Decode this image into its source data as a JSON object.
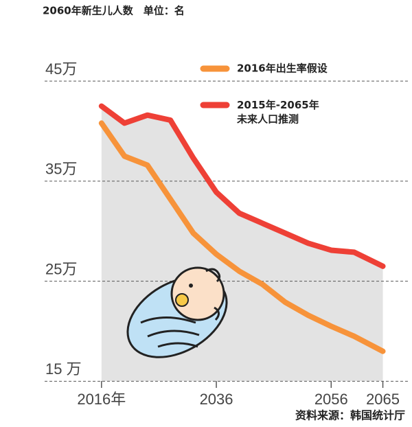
{
  "chart_data": {
    "type": "line",
    "title": "2060年新生儿人数　单位：名",
    "source": "资料来源：韩国统计厅",
    "x": [
      2016,
      2020,
      2024,
      2028,
      2032,
      2036,
      2040,
      2044,
      2048,
      2052,
      2056,
      2060,
      2065
    ],
    "series": [
      {
        "name": "2016年出生率假设",
        "color": "#f7933a",
        "values": [
          40.8,
          37.5,
          36.6,
          33.2,
          29.8,
          27.7,
          26.0,
          24.7,
          22.9,
          21.6,
          20.5,
          19.5,
          18.0
        ]
      },
      {
        "name": "2015年-2065年\n未来人口推测",
        "color": "#ee4036",
        "values": [
          42.5,
          40.8,
          41.6,
          41.1,
          37.3,
          33.9,
          31.8,
          30.8,
          29.8,
          28.8,
          28.1,
          27.9,
          26.5
        ]
      }
    ],
    "xlim": [
      2011,
      2069
    ],
    "xticks": [
      {
        "value": 2016,
        "label": "2016年"
      },
      2036,
      2056,
      2065
    ],
    "ylim": [
      14,
      47
    ],
    "yticks": [
      {
        "value": 15,
        "label": "15 万"
      },
      {
        "value": 25,
        "label": "25万"
      },
      {
        "value": 35,
        "label": "35万"
      },
      {
        "value": 45,
        "label": "45万"
      }
    ],
    "grid": true,
    "area_color": "#e3e3e3"
  }
}
